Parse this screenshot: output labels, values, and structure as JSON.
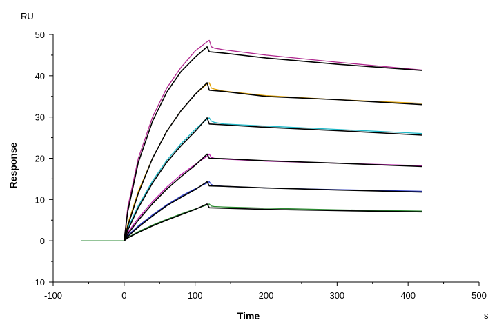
{
  "chart_data": {
    "type": "line",
    "title": "",
    "xlabel": "Time",
    "ylabel": "Response",
    "x_unit": "s",
    "y_unit": "RU",
    "xlim": [
      -100,
      500
    ],
    "ylim": [
      -10,
      50
    ],
    "x_ticks": [
      -100,
      0,
      100,
      200,
      300,
      400,
      500
    ],
    "y_ticks": [
      -10,
      0,
      10,
      20,
      30,
      40,
      50
    ],
    "grid": false,
    "legend": "none",
    "series": [
      {
        "role": "measured",
        "color": "#b0288f",
        "x": [
          -60,
          -20,
          0,
          5,
          20,
          40,
          60,
          80,
          100,
          115,
          120,
          123,
          127,
          140,
          200,
          300,
          420
        ],
        "y": [
          0,
          0,
          0,
          8,
          20,
          30,
          37,
          42,
          46,
          48,
          48.6,
          47,
          46.7,
          46.3,
          45,
          43.3,
          41.4
        ]
      },
      {
        "role": "fit",
        "color": "#000000",
        "x": [
          0,
          5,
          20,
          40,
          60,
          80,
          100,
          117,
          120,
          140,
          200,
          300,
          420
        ],
        "y": [
          0,
          7,
          19,
          29,
          36,
          41,
          44.5,
          47,
          45.8,
          45.5,
          44.3,
          42.8,
          41.3
        ]
      },
      {
        "role": "measured",
        "color": "#e0a000",
        "x": [
          -60,
          0,
          5,
          20,
          40,
          60,
          80,
          100,
          117,
          120,
          123,
          127,
          140,
          200,
          300,
          420
        ],
        "y": [
          0,
          0,
          4,
          12,
          20,
          26.5,
          31.5,
          35.5,
          38,
          38.3,
          37,
          36.8,
          36.3,
          35.2,
          34.2,
          33.3
        ]
      },
      {
        "role": "fit",
        "color": "#000000",
        "x": [
          0,
          5,
          20,
          40,
          60,
          80,
          100,
          117,
          120,
          140,
          200,
          300,
          420
        ],
        "y": [
          0,
          3.5,
          11.5,
          20,
          26.5,
          31.5,
          35.5,
          38.3,
          36.5,
          36.2,
          35,
          34.2,
          33
        ]
      },
      {
        "role": "measured",
        "color": "#1fb8c8",
        "x": [
          -60,
          0,
          5,
          20,
          40,
          60,
          80,
          100,
          117,
          120,
          123,
          127,
          140,
          200,
          300,
          420
        ],
        "y": [
          0,
          0,
          3,
          8.5,
          14.5,
          19.5,
          23.5,
          27,
          29.5,
          29.8,
          29,
          28.7,
          28.3,
          27.8,
          27,
          26
        ]
      },
      {
        "role": "fit",
        "color": "#000000",
        "x": [
          0,
          5,
          20,
          40,
          60,
          80,
          100,
          117,
          120,
          140,
          200,
          300,
          420
        ],
        "y": [
          0,
          2.5,
          8,
          14,
          19,
          23,
          26.5,
          29.8,
          28.3,
          28.1,
          27.5,
          26.7,
          25.6
        ]
      },
      {
        "role": "measured",
        "color": "#c020b0",
        "x": [
          -60,
          0,
          5,
          20,
          40,
          60,
          80,
          100,
          117,
          120,
          123,
          127,
          140,
          200,
          300,
          420
        ],
        "y": [
          0,
          0,
          2,
          5.5,
          9.5,
          13,
          16,
          18.5,
          20.5,
          21,
          20.2,
          20,
          19.8,
          19.3,
          18.8,
          18.2
        ]
      },
      {
        "role": "fit",
        "color": "#000000",
        "x": [
          0,
          5,
          20,
          40,
          60,
          80,
          100,
          117,
          120,
          140,
          200,
          300,
          420
        ],
        "y": [
          0,
          1.6,
          5,
          9,
          12.5,
          15.5,
          18.3,
          21,
          20,
          19.9,
          19.4,
          18.8,
          18
        ]
      },
      {
        "role": "measured",
        "color": "#2838c8",
        "x": [
          -60,
          0,
          5,
          20,
          40,
          60,
          80,
          100,
          117,
          120,
          123,
          127,
          140,
          200,
          300,
          420
        ],
        "y": [
          0,
          0,
          1.3,
          3.6,
          6.3,
          8.7,
          10.8,
          12.6,
          14,
          14.3,
          13.6,
          13.4,
          13.2,
          12.8,
          12.4,
          12
        ]
      },
      {
        "role": "fit",
        "color": "#000000",
        "x": [
          0,
          5,
          20,
          40,
          60,
          80,
          100,
          117,
          120,
          140,
          200,
          300,
          420
        ],
        "y": [
          0,
          1,
          3.3,
          6,
          8.5,
          10.5,
          12.4,
          14.3,
          13.3,
          13.2,
          12.8,
          12.3,
          11.8
        ]
      },
      {
        "role": "measured",
        "color": "#2a8a30",
        "x": [
          -60,
          0,
          5,
          20,
          40,
          60,
          80,
          100,
          117,
          120,
          123,
          127,
          140,
          200,
          300,
          420
        ],
        "y": [
          0,
          0,
          0.8,
          2.2,
          3.8,
          5.2,
          6.5,
          7.7,
          8.7,
          8.9,
          8.4,
          8.3,
          8.2,
          7.9,
          7.5,
          7.2
        ]
      },
      {
        "role": "fit",
        "color": "#000000",
        "x": [
          0,
          5,
          20,
          40,
          60,
          80,
          100,
          117,
          120,
          140,
          200,
          300,
          420
        ],
        "y": [
          0,
          0.7,
          2,
          3.6,
          5,
          6.3,
          7.6,
          8.9,
          8,
          7.9,
          7.6,
          7.3,
          7
        ]
      }
    ]
  }
}
